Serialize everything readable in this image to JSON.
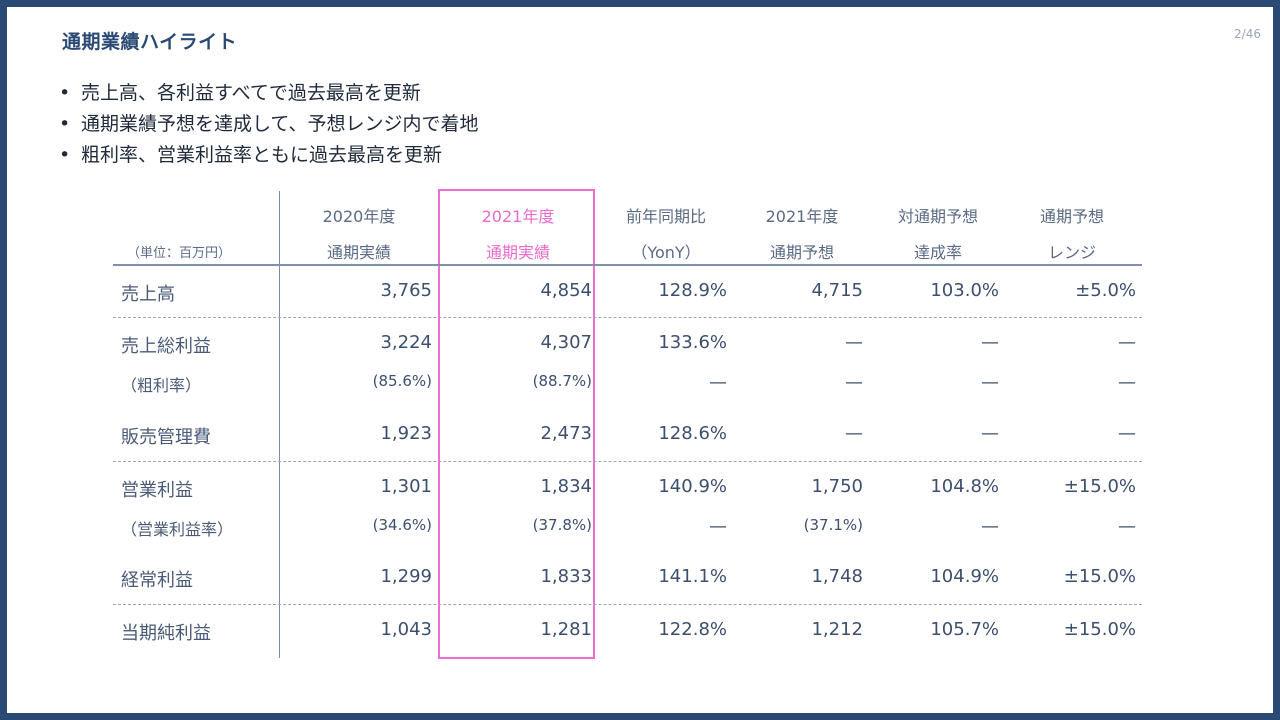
{
  "title": "通期業績ハイライト",
  "page_number": "2/46",
  "bullets": [
    "売上高、各利益すべてで過去最高を更新",
    "通期業績予想を達成して、予想レンジ内で着地",
    "粗利率、営業利益率ともに過去最高を更新"
  ],
  "bullet_symbol": "•",
  "unit_label": "（単位：百万円）",
  "headers": [
    {
      "line1": "2020年度",
      "line2": "通期実績"
    },
    {
      "line1": "2021年度",
      "line2": "通期実績"
    },
    {
      "line1": "前年同期比",
      "line2": "（YonY）"
    },
    {
      "line1": "2021年度",
      "line2": "通期予想"
    },
    {
      "line1": "対通期予想",
      "line2": "達成率"
    },
    {
      "line1": "通期予想",
      "line2": "レンジ"
    }
  ],
  "rows": [
    {
      "label": "売上高",
      "values": [
        "3,765",
        "4,854",
        "128.9%",
        "4,715",
        "103.0%",
        "±5.0%"
      ]
    },
    {
      "label": "売上総利益",
      "values": [
        "3,224",
        "4,307",
        "133.6%",
        "—",
        "—",
        "—"
      ]
    },
    {
      "label": "（粗利率）",
      "values": [
        "(85.6%)",
        "(88.7%)",
        "—",
        "—",
        "—",
        "—"
      ]
    },
    {
      "label": "販売管理費",
      "values": [
        "1,923",
        "2,473",
        "128.6%",
        "—",
        "—",
        "—"
      ]
    },
    {
      "label": "営業利益",
      "values": [
        "1,301",
        "1,834",
        "140.9%",
        "1,750",
        "104.8%",
        "±15.0%"
      ]
    },
    {
      "label": "（営業利益率）",
      "values": [
        "(34.6%)",
        "(37.8%)",
        "—",
        "(37.1%)",
        "—",
        "—"
      ]
    },
    {
      "label": "経常利益",
      "values": [
        "1,299",
        "1,833",
        "141.1%",
        "1,748",
        "104.9%",
        "±15.0%"
      ]
    },
    {
      "label": "当期純利益",
      "values": [
        "1,043",
        "1,281",
        "122.8%",
        "1,212",
        "105.7%",
        "±15.0%"
      ]
    }
  ],
  "colors": {
    "frame": "#2b4a73",
    "highlight": "#ee6fd0",
    "text": "#3c4f6e"
  }
}
